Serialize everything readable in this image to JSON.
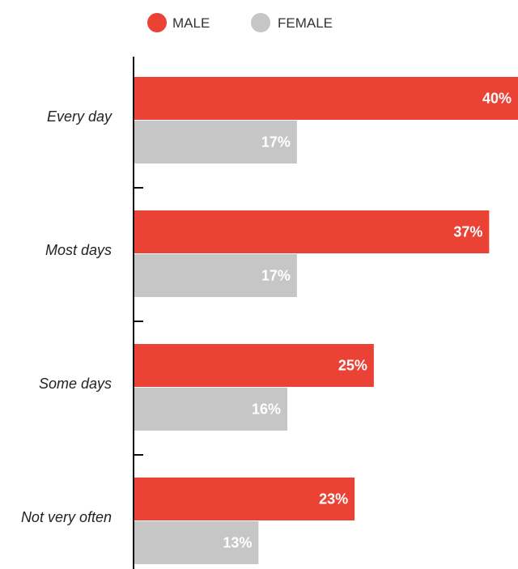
{
  "chart_data": {
    "type": "bar",
    "orientation": "horizontal",
    "categories": [
      "Every day",
      "Most days",
      "Some days",
      "Not very often"
    ],
    "series": [
      {
        "name": "MALE",
        "values": [
          40,
          37,
          25,
          23
        ],
        "labels": [
          "40%",
          "37%",
          "25%",
          "23%"
        ],
        "color": "#EA4335"
      },
      {
        "name": "FEMALE",
        "values": [
          17,
          17,
          16,
          13
        ],
        "labels": [
          "17%",
          "17%",
          "16%",
          "13%"
        ],
        "color": "#C6C6C6"
      }
    ],
    "xlim": [
      0,
      40
    ],
    "grid": false,
    "legend_position": "top-center",
    "value_labels": "inside-end"
  }
}
